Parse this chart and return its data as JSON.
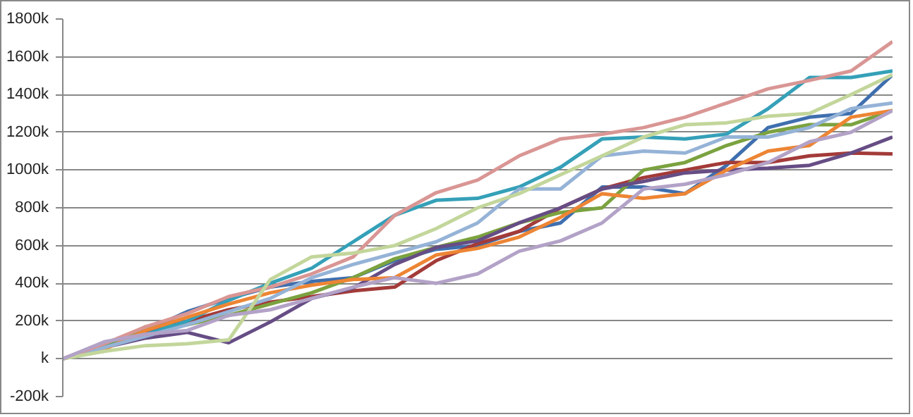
{
  "chart_data": {
    "type": "line",
    "categories": [
      null,
      null,
      null,
      null,
      null,
      null,
      null,
      null,
      null,
      null,
      null,
      null,
      null,
      null,
      null,
      null,
      null,
      null,
      null,
      null,
      null
    ],
    "ylim": [
      -200000,
      1800000
    ],
    "yticks": [
      {
        "value": -200000,
        "label": "-200k"
      },
      {
        "value": 0,
        "label": "k"
      },
      {
        "value": 200000,
        "label": "200k"
      },
      {
        "value": 400000,
        "label": "400k"
      },
      {
        "value": 600000,
        "label": "600k"
      },
      {
        "value": 800000,
        "label": "800k"
      },
      {
        "value": 1000000,
        "label": "1000k"
      },
      {
        "value": 1200000,
        "label": "1200k"
      },
      {
        "value": 1400000,
        "label": "1400k"
      },
      {
        "value": 1600000,
        "label": "1600k"
      },
      {
        "value": 1800000,
        "label": "1800k"
      }
    ],
    "grid": "y",
    "tick_labels": "y",
    "line_style": "solid",
    "marker": "none",
    "series": [
      {
        "color": "#3f6fae",
        "values": [
          0,
          70000,
          150000,
          250000,
          320000,
          380000,
          410000,
          430000,
          520000,
          580000,
          600000,
          675000,
          720000,
          910000,
          910000,
          875000,
          1025000,
          1225000,
          1280000,
          1300000,
          1505000
        ]
      },
      {
        "color": "#a33b39",
        "values": [
          0,
          80000,
          140000,
          200000,
          260000,
          300000,
          330000,
          360000,
          380000,
          520000,
          610000,
          675000,
          800000,
          900000,
          960000,
          1000000,
          1040000,
          1040000,
          1075000,
          1090000,
          1085000
        ]
      },
      {
        "color": "#7ba23f",
        "values": [
          0,
          60000,
          170000,
          180000,
          230000,
          290000,
          350000,
          430000,
          530000,
          590000,
          645000,
          720000,
          775000,
          800000,
          1000000,
          1040000,
          1130000,
          1200000,
          1240000,
          1240000,
          1315000
        ]
      },
      {
        "color": "#664d85",
        "values": [
          0,
          60000,
          110000,
          140000,
          85000,
          195000,
          320000,
          375000,
          500000,
          590000,
          625000,
          720000,
          800000,
          900000,
          940000,
          985000,
          1000000,
          1010000,
          1025000,
          1090000,
          1175000
        ]
      },
      {
        "color": "#35a0b8",
        "values": [
          0,
          60000,
          130000,
          200000,
          310000,
          400000,
          480000,
          620000,
          760000,
          840000,
          850000,
          910000,
          1015000,
          1165000,
          1175000,
          1165000,
          1190000,
          1325000,
          1490000,
          1490000,
          1525000
        ]
      },
      {
        "color": "#ed8534",
        "values": [
          0,
          50000,
          150000,
          220000,
          290000,
          350000,
          390000,
          420000,
          430000,
          550000,
          585000,
          645000,
          750000,
          875000,
          850000,
          875000,
          1000000,
          1100000,
          1130000,
          1280000,
          1315000
        ]
      },
      {
        "color": "#95b3d7",
        "values": [
          0,
          60000,
          120000,
          180000,
          250000,
          320000,
          430000,
          500000,
          560000,
          620000,
          720000,
          900000,
          900000,
          1075000,
          1100000,
          1090000,
          1175000,
          1175000,
          1225000,
          1325000,
          1355000
        ]
      },
      {
        "color": "#d99694",
        "values": [
          0,
          80000,
          170000,
          240000,
          330000,
          380000,
          450000,
          540000,
          760000,
          880000,
          947000,
          1075000,
          1165000,
          1190000,
          1225000,
          1280000,
          1355000,
          1430000,
          1475000,
          1525000,
          1680000
        ]
      },
      {
        "color": "#c3d69b",
        "values": [
          0,
          40000,
          70000,
          80000,
          100000,
          420000,
          540000,
          560000,
          600000,
          690000,
          800000,
          875000,
          975000,
          1075000,
          1175000,
          1240000,
          1250000,
          1285000,
          1300000,
          1400000,
          1505000
        ]
      },
      {
        "color": "#b3a2c7",
        "values": [
          0,
          90000,
          130000,
          150000,
          230000,
          260000,
          320000,
          380000,
          430000,
          400000,
          450000,
          570000,
          625000,
          720000,
          900000,
          925000,
          975000,
          1040000,
          1150000,
          1200000,
          1315000
        ]
      }
    ]
  }
}
